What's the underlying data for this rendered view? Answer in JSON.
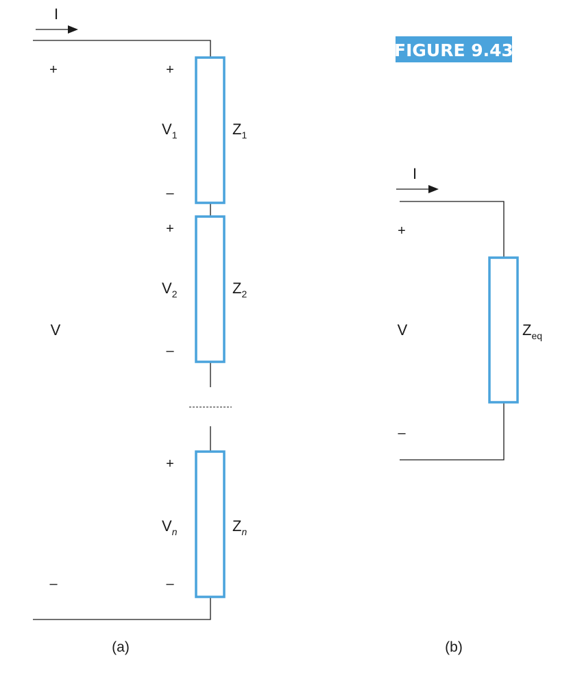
{
  "figure_label": "FIGURE 9.43",
  "colors": {
    "accent": "#4aa3dc",
    "wire": "#1a1a1a"
  },
  "panel_a": {
    "current_label": "I",
    "source_voltage": "V",
    "source_plus": "+",
    "source_minus": "–",
    "caption": "(a)",
    "elements": [
      {
        "impedance": "Z",
        "impedance_sub": "1",
        "voltage": "V",
        "voltage_sub": "1",
        "plus": "+",
        "minus": "–"
      },
      {
        "impedance": "Z",
        "impedance_sub": "2",
        "voltage": "V",
        "voltage_sub": "2",
        "plus": "+",
        "minus": "–"
      },
      {
        "impedance": "Z",
        "impedance_sub": "n",
        "voltage": "V",
        "voltage_sub": "n",
        "plus": "+",
        "minus": "–"
      }
    ]
  },
  "panel_b": {
    "current_label": "I",
    "source_voltage": "V",
    "source_plus": "+",
    "source_minus": "–",
    "impedance": "Z",
    "impedance_sub": "eq",
    "caption": "(b)"
  }
}
